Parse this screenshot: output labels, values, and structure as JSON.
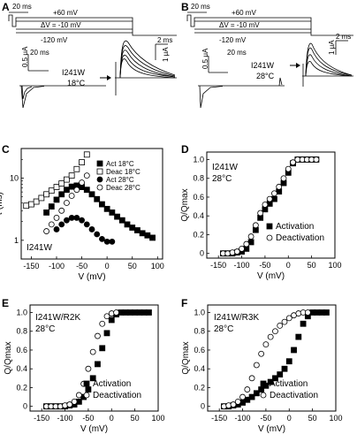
{
  "panels": {
    "A": {
      "label": "A",
      "protocol": {
        "prepulse": "20 ms",
        "top": "+60 mV",
        "step": "ΔV = -10 mV",
        "hold": "-120 mV"
      },
      "construct": "I241W",
      "temp": "18°C",
      "left_scale": {
        "time": "20 ms",
        "amp": "0.5 μA"
      },
      "right_scale": {
        "time": "2 ms",
        "amp": "1 μA"
      }
    },
    "B": {
      "label": "B",
      "protocol": {
        "prepulse": "20 ms",
        "top": "+60 mV",
        "step": "ΔV = -10 mV",
        "hold": "-120 mV"
      },
      "construct": "I241W",
      "temp": "28°C",
      "left_scale": {
        "time": "20 ms",
        "amp": "0.5 μA"
      },
      "right_scale": {
        "time": "2 ms",
        "amp": "1 μA"
      }
    }
  },
  "chart_data": [
    {
      "panel": "C",
      "type": "scatter",
      "annotation": "I241W",
      "xlabel": "V (mV)",
      "ylabel": "τ (ms)",
      "yscale": "log",
      "xlim": [
        -170,
        110
      ],
      "ylim": [
        0.5,
        30
      ],
      "xticks": [
        "-150",
        "-100",
        "-50",
        "0",
        "50",
        "100"
      ],
      "yticks": [
        "1",
        "10"
      ],
      "legend_position": "top-right",
      "series": [
        {
          "name": "Act 18°C",
          "marker": "filled-square",
          "x": [
            -120,
            -110,
            -100,
            -90,
            -80,
            -70,
            -60,
            -50,
            -40,
            -30,
            -20,
            -10,
            0,
            10,
            20,
            30,
            40,
            50,
            60,
            70,
            80,
            90
          ],
          "y": [
            2.8,
            3.5,
            4.5,
            5.5,
            6.5,
            7.3,
            7.6,
            7.2,
            6.5,
            5.5,
            4.6,
            3.8,
            3.2,
            2.8,
            2.4,
            2.1,
            1.8,
            1.6,
            1.45,
            1.3,
            1.2,
            1.1
          ]
        },
        {
          "name": "Deac 18°C",
          "marker": "open-square",
          "x": [
            -160,
            -150,
            -140,
            -130,
            -120,
            -110,
            -100,
            -90,
            -80,
            -70,
            -60,
            -50,
            -40
          ],
          "y": [
            3.6,
            3.8,
            4.2,
            4.8,
            5.5,
            6.3,
            7.2,
            8.2,
            9.5,
            11,
            14,
            18,
            24
          ]
        },
        {
          "name": "Act 28°C",
          "marker": "filled-circle",
          "x": [
            -100,
            -90,
            -80,
            -70,
            -60,
            -50,
            -40,
            -30,
            -20,
            -10,
            0,
            10
          ],
          "y": [
            1.5,
            1.8,
            2.1,
            2.3,
            2.3,
            2.1,
            1.8,
            1.5,
            1.25,
            1.05,
            0.95,
            0.95
          ]
        },
        {
          "name": "Deac 28°C",
          "marker": "open-circle",
          "x": [
            -120,
            -110,
            -100,
            -90,
            -80,
            -70,
            -60,
            -50,
            -40
          ],
          "y": [
            1.4,
            1.8,
            2.3,
            3.0,
            4.0,
            5.2,
            6.5,
            8.5,
            11
          ]
        }
      ]
    },
    {
      "panel": "D",
      "type": "scatter",
      "annotation": "I241W\n28°C",
      "xlabel": "V (mV)",
      "ylabel": "Q/Qmax",
      "xlim": [
        -175,
        100
      ],
      "ylim": [
        -0.05,
        1.08
      ],
      "xticks": [
        "-150",
        "-100",
        "-50",
        "0",
        "50",
        "100"
      ],
      "yticks": [
        "0",
        "0.2",
        "0.4",
        "0.6",
        "0.8",
        "1.0"
      ],
      "legend_position": "bottom-right",
      "series": [
        {
          "name": "Activation",
          "marker": "filled-square",
          "x": [
            -140,
            -130,
            -120,
            -110,
            -100,
            -90,
            -80,
            -70,
            -60,
            -50,
            -40,
            -30,
            -20,
            -10,
            0,
            10,
            20,
            30,
            40,
            50,
            60
          ],
          "y": [
            0.0,
            0.0,
            0.0,
            0.01,
            0.02,
            0.05,
            0.12,
            0.25,
            0.38,
            0.47,
            0.53,
            0.58,
            0.66,
            0.75,
            0.86,
            0.96,
            1.0,
            1.0,
            1.0,
            1.0,
            1.0
          ]
        },
        {
          "name": "Deactivation",
          "marker": "open-circle",
          "x": [
            -140,
            -130,
            -120,
            -110,
            -100,
            -90,
            -80,
            -70,
            -60,
            -50,
            -40,
            -30,
            -20,
            -10,
            0,
            10,
            20,
            30,
            40,
            50,
            60
          ],
          "y": [
            0.0,
            0.0,
            0.01,
            0.02,
            0.05,
            0.1,
            0.18,
            0.3,
            0.43,
            0.52,
            0.58,
            0.64,
            0.71,
            0.8,
            0.9,
            0.97,
            1.0,
            1.0,
            1.0,
            1.0,
            1.0
          ]
        }
      ]
    },
    {
      "panel": "E",
      "type": "scatter",
      "annotation": "I241W/R2K\n28°C",
      "xlabel": "V (mV)",
      "ylabel": "Q/Qmax",
      "xlim": [
        -175,
        100
      ],
      "ylim": [
        -0.05,
        1.08
      ],
      "xticks": [
        "-150",
        "-100",
        "-50",
        "0",
        "50",
        "100"
      ],
      "yticks": [
        "0",
        "0.2",
        "0.4",
        "0.6",
        "0.8",
        "1.0"
      ],
      "legend_position": "bottom-right",
      "series": [
        {
          "name": "Activation",
          "marker": "filled-square",
          "x": [
            -140,
            -130,
            -120,
            -110,
            -100,
            -90,
            -80,
            -70,
            -60,
            -50,
            -40,
            -30,
            -20,
            -10,
            0,
            10,
            20,
            30,
            40,
            50,
            60,
            70,
            80
          ],
          "y": [
            0.0,
            0.0,
            0.0,
            0.0,
            0.0,
            0.01,
            0.02,
            0.05,
            0.1,
            0.18,
            0.3,
            0.45,
            0.62,
            0.78,
            0.92,
            0.98,
            1.0,
            1.0,
            1.0,
            1.0,
            1.0,
            1.0,
            1.0
          ]
        },
        {
          "name": "Deactivation",
          "marker": "open-circle",
          "x": [
            -140,
            -130,
            -120,
            -110,
            -100,
            -90,
            -80,
            -70,
            -60,
            -50,
            -40,
            -30,
            -20,
            -10,
            0,
            10
          ],
          "y": [
            0.0,
            0.0,
            0.0,
            0.0,
            0.01,
            0.02,
            0.05,
            0.12,
            0.24,
            0.4,
            0.58,
            0.75,
            0.88,
            0.96,
            0.99,
            1.0
          ]
        }
      ]
    },
    {
      "panel": "F",
      "type": "scatter",
      "annotation": "I241W/R3K\n28°C",
      "xlabel": "V (mV)",
      "ylabel": "Q/Qmax",
      "xlim": [
        -175,
        100
      ],
      "ylim": [
        -0.05,
        1.08
      ],
      "xticks": [
        "-150",
        "-100",
        "-50",
        "0",
        "50",
        "100"
      ],
      "yticks": [
        "0",
        "0.2",
        "0.4",
        "0.6",
        "0.8",
        "1.0"
      ],
      "legend_position": "bottom-right",
      "series": [
        {
          "name": "Activation",
          "marker": "filled-square",
          "x": [
            -140,
            -130,
            -120,
            -110,
            -100,
            -90,
            -80,
            -70,
            -60,
            -50,
            -40,
            -30,
            -20,
            -10,
            0,
            10,
            20,
            30,
            40,
            50,
            60,
            70,
            80
          ],
          "y": [
            0.0,
            0.0,
            0.01,
            0.02,
            0.04,
            0.07,
            0.1,
            0.14,
            0.18,
            0.22,
            0.26,
            0.3,
            0.34,
            0.4,
            0.48,
            0.6,
            0.74,
            0.88,
            0.96,
            1.0,
            1.0,
            1.0,
            1.0
          ]
        },
        {
          "name": "Deactivation",
          "marker": "open-circle",
          "x": [
            -140,
            -130,
            -120,
            -110,
            -100,
            -90,
            -80,
            -70,
            -60,
            -50,
            -40,
            -30,
            -20,
            -10,
            0,
            10,
            20,
            30,
            40
          ],
          "y": [
            0.0,
            0.01,
            0.02,
            0.05,
            0.1,
            0.18,
            0.3,
            0.44,
            0.56,
            0.66,
            0.74,
            0.8,
            0.86,
            0.9,
            0.94,
            0.97,
            0.99,
            1.0,
            1.0
          ]
        }
      ]
    }
  ]
}
